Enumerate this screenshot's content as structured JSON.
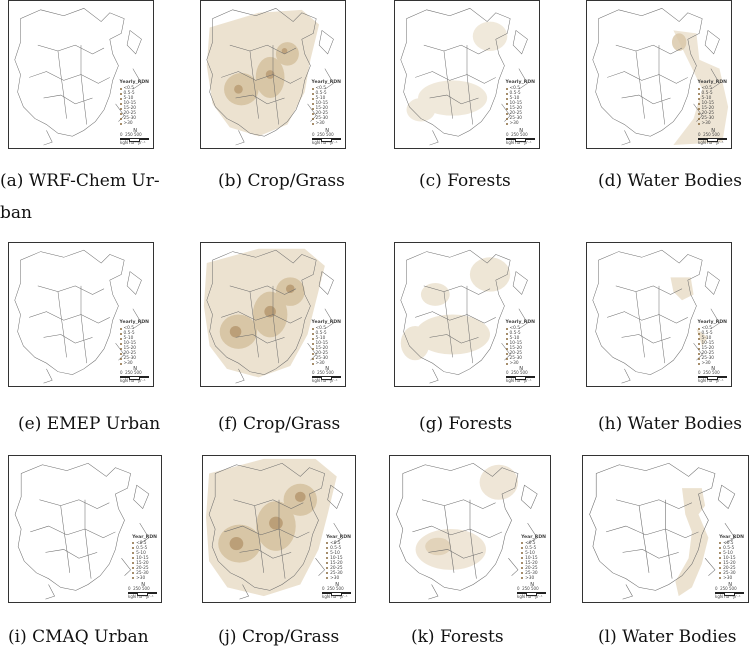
{
  "legend": {
    "title": "Yearly_RDN",
    "title_alt": "Year_RDN",
    "items": [
      "<0.5",
      "0.5-5",
      "5-10",
      "10-15",
      "15-20",
      "20-25",
      "25-30",
      ">30"
    ]
  },
  "scale": {
    "ticks": [
      "0",
      "250",
      "500"
    ],
    "unit": "kgN ha⁻¹yr⁻¹"
  },
  "north_label": "N",
  "captions": {
    "a": "(a) WRF-Chem Ur-",
    "a2": "ban",
    "b": "(b) Crop/Grass",
    "c": "(c) Forests",
    "d": "(d) Water Bodies",
    "e": "(e) EMEP Urban",
    "f": "(f) Crop/Grass",
    "g": "(g) Forests",
    "h": "(h) Water Bodies",
    "i": "(i) CMAQ Urban",
    "j": "(j) Crop/Grass",
    "k": "(k) Forests",
    "l": "(l) Water Bodies"
  },
  "colors": {
    "shade_light": "#ece2d0",
    "shade_mid": "#d8c6a6",
    "shade_dark": "#a9865a",
    "border": "#555555"
  }
}
